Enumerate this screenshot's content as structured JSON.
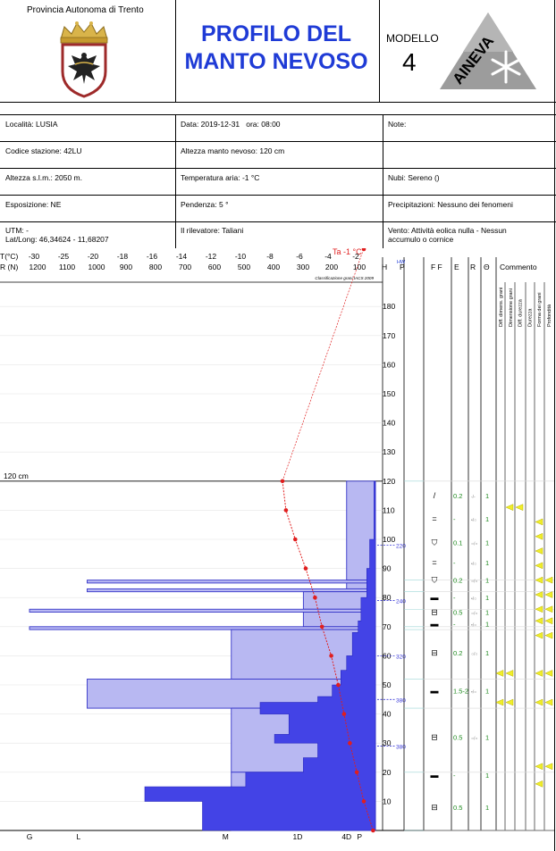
{
  "header": {
    "province": "Provincia Autonoma di Trento",
    "title_line1": "PROFILO DEL",
    "title_line2": "MANTO NEVOSO",
    "model_label": "MODELLO",
    "model_number": "4",
    "logo_text": "AINEVA"
  },
  "info": {
    "location": "Località: LUSIA",
    "station": "Codice stazione: 42LU",
    "altitude": "Altezza s.l.m.: 2050 m.",
    "exposure": "Esposizione: NE",
    "utm": "UTM: -\nLat/Long: 46,34624 - 11,68207",
    "date": "Data: 2019-12-31   ora: 08:00",
    "snow_height": "Altezza manto nevoso: 120 cm",
    "air_temp": "Temperatura aria: -1 °C",
    "slope": "Pendenza: 5 °",
    "observer": "Il rilevatore: Taliani",
    "notes": "Note:",
    "clouds": "Nubi: Sereno ()",
    "precip": "Precipitazioni: Nessuno dei fenomeni",
    "wind": "Vento: Attività eolica nulla - Nessun\naccumulo o cornice"
  },
  "chart_data": {
    "type": "snow-profile",
    "temp_axis": {
      "label": "T(°C)",
      "ticks": [
        "-30",
        "-25",
        "-20",
        "-18",
        "-16",
        "-14",
        "-12",
        "-10",
        "-8",
        "-6",
        "-4",
        "-2"
      ],
      "tick_values": [
        -30,
        -25,
        -20,
        -18,
        -16,
        -14,
        -12,
        -10,
        -8,
        -6,
        -4,
        -2
      ]
    },
    "res_axis": {
      "label": "R (N)",
      "ticks": [
        "1200",
        "1100",
        "1000",
        "900",
        "800",
        "700",
        "600",
        "500",
        "400",
        "300",
        "200",
        "100"
      ],
      "tick_values": [
        1200,
        1100,
        1000,
        900,
        800,
        700,
        600,
        500,
        400,
        300,
        200,
        100
      ]
    },
    "height_axis": {
      "label": "H",
      "ticks": [
        "180",
        "170",
        "160",
        "150",
        "140",
        "130",
        "120",
        "110",
        "100",
        "90",
        "80",
        "70",
        "60",
        "50",
        "40",
        "30",
        "20",
        "10"
      ],
      "tick_values": [
        180,
        170,
        160,
        150,
        140,
        130,
        120,
        110,
        100,
        90,
        80,
        70,
        60,
        50,
        40,
        30,
        20,
        10
      ],
      "range": [
        0,
        190
      ]
    },
    "p_label": "P",
    "hw_label": "HW",
    "classification_note": "Classificazione grani IACS 2009",
    "air_temp_label": "Ta -1 °C",
    "snow_height_label": "120 cm",
    "temperature_profile": [
      {
        "h": 120,
        "t": -8.0
      },
      {
        "h": 110,
        "t": -7.7
      },
      {
        "h": 100,
        "t": -6.9
      },
      {
        "h": 90,
        "t": -6.0
      },
      {
        "h": 80,
        "t": -5.2
      },
      {
        "h": 70,
        "t": -4.6
      },
      {
        "h": 60,
        "t": -3.8
      },
      {
        "h": 50,
        "t": -3.2
      },
      {
        "h": 40,
        "t": -2.7
      },
      {
        "h": 30,
        "t": -2.2
      },
      {
        "h": 20,
        "t": -1.6
      },
      {
        "h": 10,
        "t": -1.0
      },
      {
        "h": 0,
        "t": -0.2
      }
    ],
    "air_temperature": {
      "h": 197,
      "t": -1
    },
    "hand_hardness_layers": [
      {
        "h_bottom": 86,
        "h_top": 120,
        "r": 100
      },
      {
        "h_bottom": 85,
        "h_top": 86,
        "r": 1000
      },
      {
        "h_bottom": 83,
        "h_top": 85,
        "r": 100
      },
      {
        "h_bottom": 82,
        "h_top": 83,
        "r": 1000
      },
      {
        "h_bottom": 76,
        "h_top": 82,
        "r": 250
      },
      {
        "h_bottom": 75,
        "h_top": 76,
        "r": 1200
      },
      {
        "h_bottom": 70,
        "h_top": 75,
        "r": 250
      },
      {
        "h_bottom": 69,
        "h_top": 70,
        "r": 1200
      },
      {
        "h_bottom": 52,
        "h_top": 69,
        "r": 500
      },
      {
        "h_bottom": 42,
        "h_top": 52,
        "r": 1000
      },
      {
        "h_bottom": 20,
        "h_top": 42,
        "r": 500
      },
      {
        "h_bottom": 0,
        "h_top": 20,
        "r": 500
      }
    ],
    "ram_profile": [
      {
        "h": 120,
        "r": 5
      },
      {
        "h": 100,
        "r": 20
      },
      {
        "h": 90,
        "r": 30
      },
      {
        "h": 80,
        "r": 50
      },
      {
        "h": 72,
        "r": 60
      },
      {
        "h": 68,
        "r": 80
      },
      {
        "h": 60,
        "r": 100
      },
      {
        "h": 55,
        "r": 120
      },
      {
        "h": 50,
        "r": 150
      },
      {
        "h": 46,
        "r": 200
      },
      {
        "h": 44,
        "r": 400
      },
      {
        "h": 40,
        "r": 300
      },
      {
        "h": 33,
        "r": 350
      },
      {
        "h": 30,
        "r": 200
      },
      {
        "h": 25,
        "r": 250
      },
      {
        "h": 20,
        "r": 450
      },
      {
        "h": 15,
        "r": 800
      },
      {
        "h": 10,
        "r": 600
      },
      {
        "h": 0,
        "r": 500
      }
    ],
    "density_labels": [
      {
        "h": 98,
        "value": "220"
      },
      {
        "h": 79,
        "value": "240"
      },
      {
        "h": 60,
        "value": "320"
      },
      {
        "h": 45,
        "value": "380"
      },
      {
        "h": 29,
        "value": "380"
      }
    ],
    "hardness_bottom_labels": [
      {
        "label": "G",
        "r": 1200
      },
      {
        "label": "L",
        "r": 1030
      },
      {
        "label": "M",
        "r": 520
      },
      {
        "label": "1D",
        "r": 270
      },
      {
        "label": "4D",
        "r": 100
      },
      {
        "label": "P",
        "r": 55
      }
    ],
    "columns": {
      "ff": "F F",
      "e": "E",
      "r": "R",
      "theta": "Θ",
      "comment": "Commento"
    },
    "comment_columns": [
      "Diff. dimens. grani",
      "Dimensione grani",
      "Diff. durezza",
      "Durezza",
      "Forma dei grani",
      "Profondità"
    ],
    "layer_rows": [
      {
        "h": 115,
        "symbol": "/",
        "e": "0.2",
        "r": "-/-",
        "theta": "1"
      },
      {
        "h": 107,
        "symbol": "=",
        "e": "-",
        "r": "•/○",
        "theta": "1"
      },
      {
        "h": 99,
        "symbol": "⛉",
        "e": "0.1",
        "r": "○/○",
        "theta": "1"
      },
      {
        "h": 92,
        "symbol": "=",
        "e": "-",
        "r": "•/○",
        "theta": "1"
      },
      {
        "h": 86,
        "symbol": "⛉",
        "e": "0.2",
        "r": "○/○",
        "theta": "1"
      },
      {
        "h": 80,
        "symbol": "▬",
        "e": "-",
        "r": "•/○",
        "theta": "1"
      },
      {
        "h": 75,
        "symbol": "⊟",
        "e": "0.5",
        "r": "○/○",
        "theta": "1"
      },
      {
        "h": 71,
        "symbol": "▬",
        "e": "-",
        "r": "•/○",
        "theta": "1"
      },
      {
        "h": 61,
        "symbol": "⊟",
        "e": "0.2",
        "r": "○/○",
        "theta": "1"
      },
      {
        "h": 48,
        "symbol": "▬",
        "e": "1.5-2",
        "r": "•/○",
        "theta": "1"
      },
      {
        "h": 32,
        "symbol": "⊟",
        "e": "0.5",
        "r": "○/○",
        "theta": "1"
      },
      {
        "h": 19,
        "symbol": "▬",
        "e": "-",
        "r": "",
        "theta": "1"
      },
      {
        "h": 8,
        "symbol": "⊟",
        "e": "0.5",
        "r": "",
        "theta": "1"
      }
    ],
    "comment_markers": [
      {
        "h": 111,
        "cols": [
          1,
          2
        ]
      },
      {
        "h": 106,
        "cols": [
          4
        ]
      },
      {
        "h": 101,
        "cols": [
          4
        ]
      },
      {
        "h": 96,
        "cols": [
          4
        ]
      },
      {
        "h": 91,
        "cols": [
          4
        ]
      },
      {
        "h": 86,
        "cols": [
          4,
          5
        ]
      },
      {
        "h": 81,
        "cols": [
          4,
          5
        ]
      },
      {
        "h": 76,
        "cols": [
          4,
          5
        ]
      },
      {
        "h": 72,
        "cols": [
          4,
          5
        ]
      },
      {
        "h": 67,
        "cols": [
          4,
          5
        ]
      },
      {
        "h": 54,
        "cols": [
          0,
          1,
          4,
          5
        ]
      },
      {
        "h": 44,
        "cols": [
          0,
          1,
          4,
          5
        ]
      },
      {
        "h": 22,
        "cols": [
          4,
          5
        ]
      },
      {
        "h": 16,
        "cols": [
          4
        ]
      }
    ]
  }
}
